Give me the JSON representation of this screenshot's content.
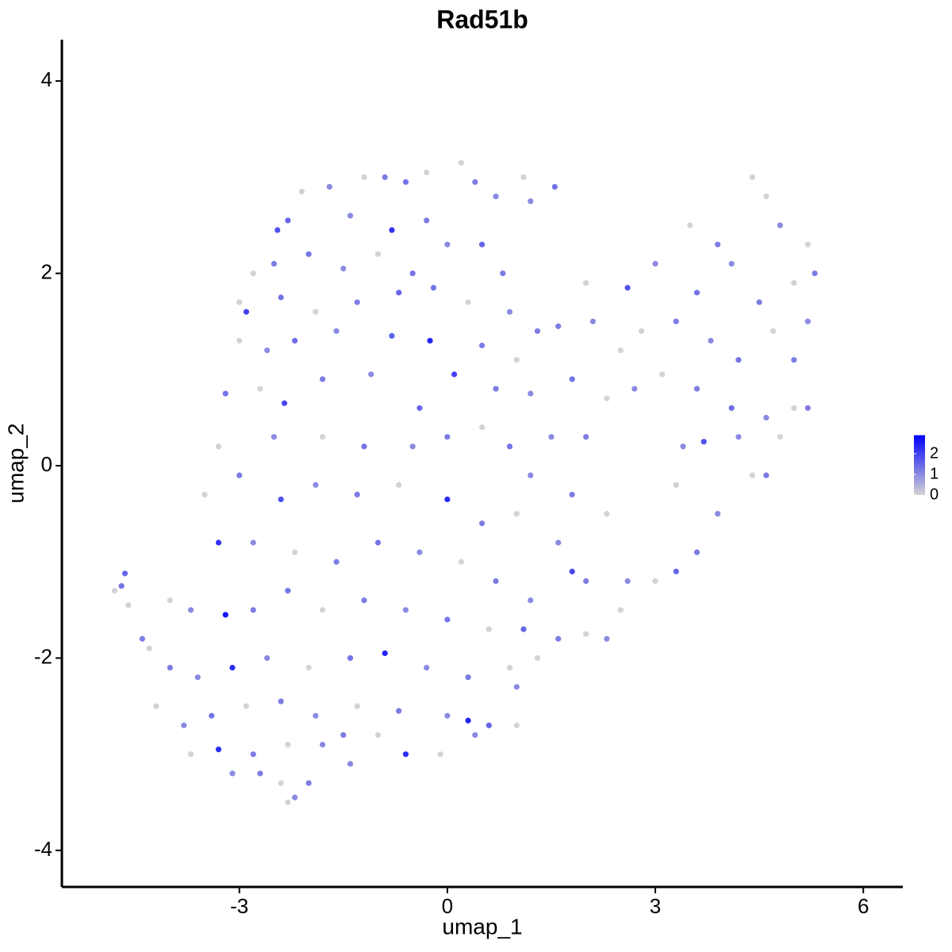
{
  "chart_data": {
    "type": "scatter",
    "title": "Rad51b",
    "x_label": "umap_1",
    "y_label": "umap_2",
    "xlim": [
      -5.56,
      6.57
    ],
    "ylim": [
      -4.38,
      4.43
    ],
    "xticks": [
      -3,
      0,
      3,
      6
    ],
    "yticks": [
      -4,
      -2,
      0,
      2,
      4
    ],
    "color_lim": [
      0,
      2.9
    ],
    "color_ticks": [
      0,
      1,
      2
    ],
    "low_color": "#d3d3d3",
    "high_color": "#0000ff",
    "x": [
      -4.7,
      -4.65,
      -4.8,
      -4.6,
      -4.4,
      -2.1,
      -1.7,
      -1.2,
      -0.9,
      -0.6,
      -0.3,
      0.2,
      0.4,
      0.7,
      1.1,
      1.55,
      -2.3,
      -2.45,
      -1.4,
      -0.8,
      -0.3,
      0.5,
      1.2,
      -2.8,
      -2.5,
      -2.0,
      -1.5,
      -1.0,
      -0.5,
      0.0,
      0.8,
      -3.0,
      -2.9,
      -2.4,
      -1.9,
      -1.3,
      -0.7,
      -0.2,
      0.3,
      0.9,
      1.3,
      -3.0,
      -2.6,
      -2.2,
      -1.6,
      -0.8,
      -0.25,
      0.5,
      1.0,
      -3.2,
      -2.7,
      -2.35,
      -1.8,
      -1.1,
      -0.4,
      0.1,
      0.7,
      1.2,
      2.0,
      2.6,
      3.0,
      3.5,
      3.9,
      4.4,
      4.6,
      4.8,
      5.2,
      5.3,
      4.1,
      3.6,
      4.5,
      5.0,
      5.2,
      1.6,
      2.1,
      2.5,
      2.8,
      3.3,
      3.8,
      4.2,
      4.7,
      5.0,
      1.8,
      2.3,
      2.7,
      3.1,
      3.6,
      4.1,
      4.6,
      5.0,
      5.2,
      3.4,
      3.7,
      4.2,
      4.8,
      4.4,
      4.6,
      3.3,
      3.9,
      3.6,
      3.3,
      3.0,
      2.6,
      2.5,
      2.3,
      2.0,
      1.6,
      1.3,
      1.0,
      1.0,
      1.8,
      2.3,
      1.5,
      2.0,
      1.2,
      0.9,
      0.5,
      0.0,
      -0.5,
      -1.2,
      -1.8,
      -2.5,
      -3.3,
      -3.5,
      -3.0,
      -2.4,
      -1.9,
      -1.3,
      -0.7,
      0.0,
      0.5,
      1.0,
      1.6,
      1.8,
      2.0,
      -3.3,
      -2.8,
      -2.2,
      -1.6,
      -1.0,
      -0.4,
      0.2,
      0.7,
      1.2,
      -4.0,
      -3.7,
      -3.2,
      -2.8,
      -2.3,
      -1.8,
      -1.2,
      -0.6,
      0.0,
      0.6,
      1.1,
      -4.3,
      -4.0,
      -3.6,
      -3.1,
      -2.6,
      -2.0,
      -1.4,
      -0.9,
      -0.3,
      0.3,
      0.9,
      -4.2,
      -3.8,
      -3.4,
      -2.9,
      -2.4,
      -1.9,
      -1.3,
      -0.7,
      0.0,
      0.3,
      0.6,
      -3.7,
      -3.3,
      -2.8,
      -2.3,
      -1.8,
      -1.5,
      -1.0,
      -0.6,
      -0.1,
      0.4,
      -3.1,
      -2.7,
      -2.4,
      -2.0,
      -1.4,
      -2.3,
      -2.2
    ],
    "y": [
      -1.25,
      -1.12,
      -1.3,
      -1.45,
      -1.8,
      2.85,
      2.9,
      3.0,
      3.0,
      2.95,
      3.05,
      3.15,
      2.95,
      2.8,
      3.0,
      2.9,
      2.55,
      2.45,
      2.6,
      2.45,
      2.55,
      2.3,
      2.75,
      2.0,
      2.1,
      2.2,
      2.05,
      2.2,
      2.0,
      2.3,
      2.0,
      1.7,
      1.6,
      1.75,
      1.6,
      1.7,
      1.8,
      1.85,
      1.7,
      1.6,
      1.4,
      1.3,
      1.2,
      1.3,
      1.4,
      1.35,
      1.3,
      1.25,
      1.1,
      0.75,
      0.8,
      0.65,
      0.9,
      0.95,
      0.6,
      0.95,
      0.8,
      0.75,
      1.9,
      1.85,
      2.1,
      2.5,
      2.3,
      3.0,
      2.8,
      2.5,
      2.3,
      2.0,
      2.1,
      1.8,
      1.7,
      1.9,
      1.5,
      1.45,
      1.5,
      1.2,
      1.4,
      1.5,
      1.3,
      1.1,
      1.4,
      1.1,
      0.9,
      0.7,
      0.8,
      0.95,
      0.8,
      0.6,
      0.5,
      0.6,
      0.6,
      0.2,
      0.25,
      0.3,
      0.3,
      -0.1,
      -0.1,
      -0.2,
      -0.5,
      -0.9,
      -1.1,
      -1.2,
      -1.2,
      -1.5,
      -1.8,
      -1.75,
      -1.8,
      -2.0,
      -2.3,
      -2.7,
      -0.3,
      -0.5,
      0.3,
      0.3,
      -0.1,
      0.2,
      0.4,
      0.3,
      0.2,
      0.2,
      0.3,
      0.3,
      0.2,
      -0.3,
      -0.1,
      -0.35,
      -0.2,
      -0.3,
      -0.2,
      -0.35,
      -0.6,
      -0.5,
      -0.8,
      -1.1,
      -1.2,
      -0.8,
      -0.8,
      -0.9,
      -1.0,
      -0.8,
      -0.9,
      -1.0,
      -1.2,
      -1.4,
      -1.4,
      -1.5,
      -1.55,
      -1.5,
      -1.3,
      -1.5,
      -1.4,
      -1.5,
      -1.6,
      -1.7,
      -1.7,
      -1.9,
      -2.1,
      -2.2,
      -2.1,
      -2.0,
      -2.1,
      -2.0,
      -1.95,
      -2.1,
      -2.2,
      -2.1,
      -2.5,
      -2.7,
      -2.6,
      -2.5,
      -2.45,
      -2.6,
      -2.5,
      -2.55,
      -2.6,
      -2.65,
      -2.7,
      -3.0,
      -2.95,
      -3.0,
      -2.9,
      -2.9,
      -2.8,
      -2.8,
      -3.0,
      -3.0,
      -2.8,
      -3.2,
      -3.2,
      -3.3,
      -3.3,
      -3.1,
      -3.5,
      -3.45
    ],
    "values": [
      1.3,
      1.5,
      0,
      0,
      1.2,
      0,
      1.0,
      0,
      1.2,
      1.3,
      0,
      0,
      1.2,
      1.0,
      0,
      1.3,
      1.5,
      1.8,
      1.0,
      2.2,
      1.2,
      1.5,
      1.0,
      0,
      1.2,
      1.3,
      1.0,
      0,
      1.3,
      1.0,
      1.2,
      0,
      2.0,
      1.3,
      0,
      1.2,
      1.5,
      1.3,
      0,
      1.0,
      1.2,
      0,
      1.0,
      1.4,
      1.0,
      1.6,
      2.4,
      1.2,
      0,
      1.3,
      0,
      1.9,
      1.2,
      1.0,
      1.5,
      2.0,
      1.2,
      1.0,
      0,
      1.8,
      1.0,
      0,
      1.2,
      0,
      0,
      1.0,
      0,
      1.2,
      1.0,
      1.3,
      1.2,
      0,
      1.0,
      1.2,
      1.0,
      0,
      0,
      1.2,
      1.0,
      1.3,
      0,
      1.2,
      1.3,
      0,
      1.0,
      0,
      1.2,
      1.4,
      1.0,
      0,
      1.2,
      1.0,
      1.8,
      1.0,
      0,
      0,
      1.2,
      0,
      1.0,
      1.2,
      1.5,
      0,
      1.0,
      0,
      1.0,
      0,
      1.2,
      0,
      1.0,
      0,
      1.2,
      0,
      1.0,
      1.2,
      1.0,
      1.3,
      0,
      1.2,
      1.0,
      1.3,
      0,
      1.0,
      0,
      0,
      1.2,
      1.8,
      1.0,
      1.2,
      0,
      2.3,
      1.2,
      0,
      1.0,
      1.9,
      1.2,
      2.2,
      1.0,
      0,
      1.2,
      1.3,
      1.0,
      0,
      1.2,
      1.0,
      0,
      1.0,
      2.6,
      1.2,
      1.3,
      0,
      1.2,
      1.0,
      1.3,
      0,
      1.5,
      0,
      1.2,
      1.0,
      2.3,
      1.0,
      0,
      1.3,
      2.4,
      1.0,
      1.2,
      0,
      0,
      1.0,
      1.3,
      0,
      1.2,
      1.0,
      0,
      1.2,
      1.0,
      2.4,
      1.5,
      0,
      2.3,
      1.2,
      0,
      1.0,
      1.2,
      0,
      2.3,
      0,
      1.0,
      1.0,
      1.2,
      0,
      1.2,
      1.0,
      0,
      1.0
    ]
  }
}
